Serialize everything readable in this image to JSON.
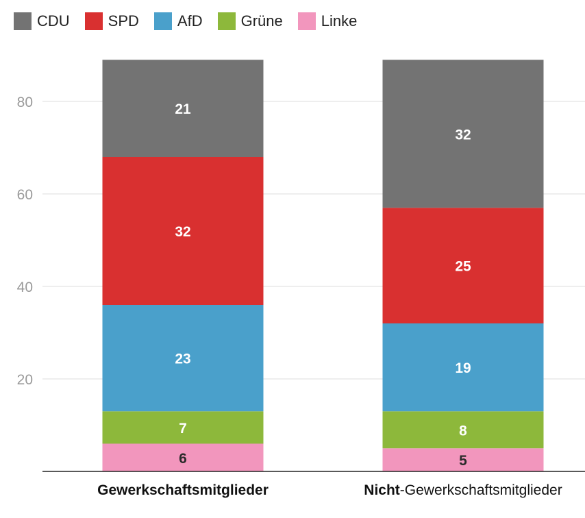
{
  "chart_data": {
    "type": "bar",
    "stacked": true,
    "categories": [
      "Gewerkschaftsmitglieder",
      "Nicht-Gewerkschaftsmitglieder"
    ],
    "category_labels": [
      {
        "bold": "Gewerkschaftsmitglieder",
        "rest": ""
      },
      {
        "bold": "Nicht",
        "rest": "-Gewerkschaftsmitglieder"
      }
    ],
    "series": [
      {
        "name": "Linke",
        "color": "#f296bd",
        "values": [
          6,
          5
        ]
      },
      {
        "name": "Grüne",
        "color": "#8db83b",
        "values": [
          7,
          8
        ]
      },
      {
        "name": "AfD",
        "color": "#4aa0cb",
        "values": [
          23,
          19
        ]
      },
      {
        "name": "SPD",
        "color": "#d93030",
        "values": [
          32,
          25
        ]
      },
      {
        "name": "CDU",
        "color": "#737373",
        "values": [
          21,
          32
        ]
      }
    ],
    "legend_order": [
      "CDU",
      "SPD",
      "AfD",
      "Grüne",
      "Linke"
    ],
    "yticks": [
      20,
      40,
      60,
      80
    ],
    "ylim": [
      0,
      89
    ],
    "legend_position": "top-left"
  }
}
